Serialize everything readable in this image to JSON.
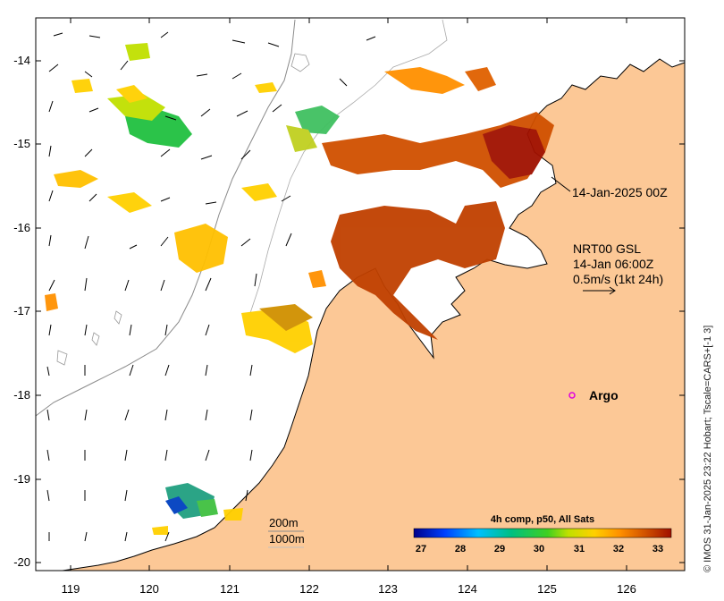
{
  "map": {
    "lon_ticks": [
      "119",
      "120",
      "121",
      "122",
      "123",
      "124",
      "125",
      "126"
    ],
    "lat_ticks": [
      "-14",
      "-15",
      "-16",
      "-17",
      "-18",
      "-19",
      "-20"
    ],
    "annotations": {
      "track_time": "14-Jan-2025 00Z",
      "product_line1": "NRT00 GSL",
      "product_line2": "14-Jan 06:00Z",
      "scale_text": "0.5m/s (1kt 24h)",
      "argo_label": "Argo",
      "contour_200": "200m",
      "contour_1000": "1000m"
    },
    "colorbar": {
      "title": "4h comp, p50, All Sats",
      "ticks": [
        "27",
        "28",
        "29",
        "30",
        "31",
        "32",
        "33"
      ],
      "colors": [
        "#00008b",
        "#0040ff",
        "#00c0ff",
        "#00c080",
        "#40d020",
        "#c0e000",
        "#ffd000",
        "#ff9000",
        "#d05000",
        "#a01000"
      ]
    },
    "side_text": "© IMOS 31-Jan-2025 23:22 Hobart; Tscale=CARS+[-1 3]",
    "colors": {
      "land": "#fcc896",
      "argo": "#e000e0",
      "coast": "#000000",
      "bathy": "#8a8a8a"
    }
  }
}
